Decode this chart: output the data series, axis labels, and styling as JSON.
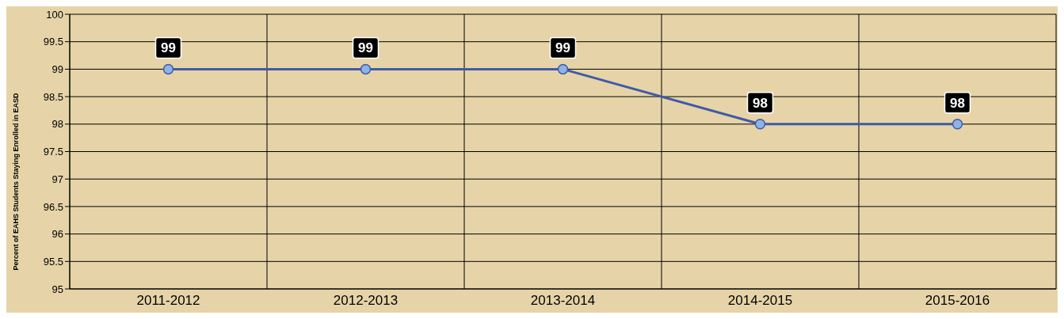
{
  "chart_data": {
    "type": "line",
    "ylabel": "Percent of EAHS Students Staying Enrolled in EASD",
    "categories": [
      "2011-2012",
      "2012-2013",
      "2013-2014",
      "2014-2015",
      "2015-2016"
    ],
    "series": [
      {
        "color": "#3f5aa8",
        "values": [
          99,
          99,
          99,
          98,
          98
        ]
      }
    ],
    "ylim": [
      95,
      100
    ],
    "yticks": [
      95,
      95.5,
      96,
      96.5,
      97,
      97.5,
      98,
      98.5,
      99,
      99.5,
      100
    ],
    "grid": true,
    "data_labels": true,
    "marker": "circle",
    "line_style": "solid",
    "legend": false
  }
}
